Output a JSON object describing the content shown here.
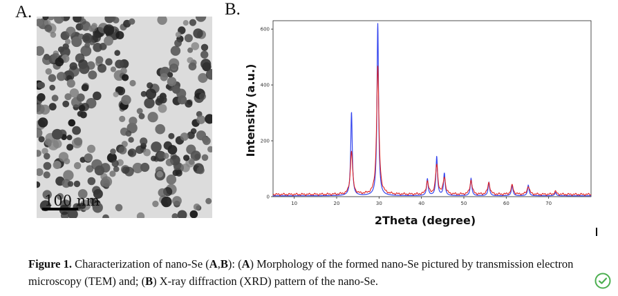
{
  "panel_a_label": "A.",
  "panel_b_label": "B.",
  "scale_bar_label": "100 nm",
  "caption": {
    "figure_label": "Figure 1.",
    "text_parts": [
      " Characterization of nano-Se (",
      "A",
      ",",
      "B",
      "): (",
      "A",
      ") Morphology of the formed nano-Se pictured by transmission electron microscopy (TEM) and; (",
      "B",
      ") X-ray diffraction (XRD) pattern of the nano-Se."
    ]
  },
  "chart_data": {
    "type": "line",
    "xlabel": "2Theta (degree)",
    "ylabel": "Intensity (a.u.)",
    "xlim": [
      5,
      80
    ],
    "ylim": [
      0,
      630
    ],
    "x_ticks": [
      10,
      20,
      30,
      40,
      50,
      60,
      70
    ],
    "y_ticks": [
      0,
      200,
      400,
      600
    ],
    "grid": false,
    "colors": {
      "blue": "#3344ee",
      "red": "#dd2222"
    },
    "series": [
      {
        "peaks": [
          {
            "x": 23.5,
            "y": 300
          },
          {
            "x": 29.7,
            "y": 618
          },
          {
            "x": 41.4,
            "y": 60
          },
          {
            "x": 43.6,
            "y": 140
          },
          {
            "x": 45.4,
            "y": 80
          },
          {
            "x": 51.7,
            "y": 62
          },
          {
            "x": 55.9,
            "y": 48
          },
          {
            "x": 61.4,
            "y": 38
          },
          {
            "x": 65.2,
            "y": 38
          },
          {
            "x": 71.6,
            "y": 12
          }
        ],
        "baseline": 3
      },
      {
        "peaks": [
          {
            "x": 23.5,
            "y": 155
          },
          {
            "x": 29.7,
            "y": 460
          },
          {
            "x": 41.4,
            "y": 45
          },
          {
            "x": 43.6,
            "y": 105
          },
          {
            "x": 45.4,
            "y": 60
          },
          {
            "x": 51.7,
            "y": 50
          },
          {
            "x": 55.9,
            "y": 42
          },
          {
            "x": 61.4,
            "y": 32
          },
          {
            "x": 65.2,
            "y": 30
          },
          {
            "x": 71.6,
            "y": 10
          }
        ],
        "baseline": 8
      }
    ]
  }
}
